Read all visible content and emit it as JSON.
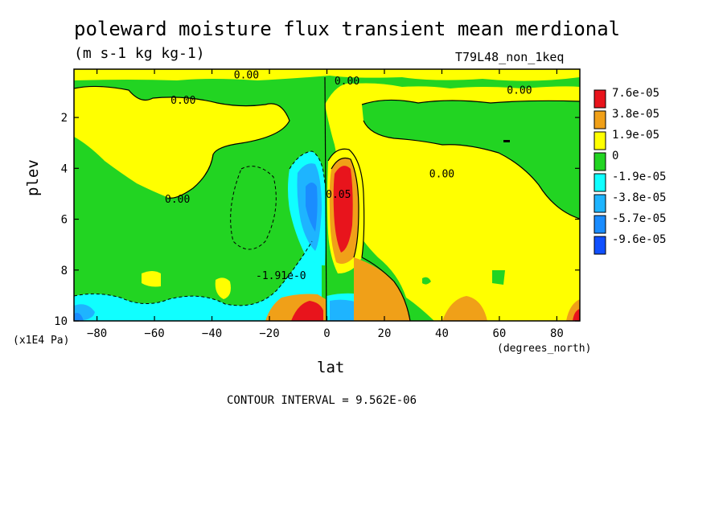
{
  "title": "poleward moisture flux transient mean merdional",
  "subtitle": "(m s-1 kg kg-1)",
  "run_label": "T79L48_non_1keq",
  "y_units": "(x1E4 Pa)",
  "x_units": "(degrees_north)",
  "contour_interval": "CONTOUR INTERVAL = 9.562E-06",
  "colors": {
    "red": "#e8141c",
    "orange": "#f0a018",
    "yellow": "#ffff00",
    "green": "#22d422",
    "cyan": "#10ffff",
    "blue1": "#1eb4ff",
    "blue2": "#1a8cff",
    "blue3": "#1050ff"
  },
  "chart_data": {
    "type": "heatmap",
    "xlabel": "lat",
    "ylabel": "plev",
    "xlim": [
      -88,
      88
    ],
    "ylim": [
      10,
      0.1
    ],
    "x_ticks": [
      -80,
      -60,
      -40,
      -20,
      0,
      20,
      40,
      60,
      80
    ],
    "y_ticks": [
      2,
      4,
      6,
      8,
      10
    ],
    "legend": {
      "placement": "right",
      "labels": [
        "7.6e-05",
        "3.8e-05",
        "1.9e-05",
        "0",
        "-1.9e-05",
        "-3.8e-05",
        "-5.7e-05",
        "-9.6e-05"
      ]
    },
    "contour_labels": [
      {
        "text": "0.00",
        "x": -28,
        "y": 0.3
      },
      {
        "text": "0.00",
        "x": 7,
        "y": 0.55
      },
      {
        "text": "0.00",
        "x": -50,
        "y": 1.3
      },
      {
        "text": "0.00",
        "x": 67,
        "y": 0.9
      },
      {
        "text": "0.00",
        "x": 40,
        "y": 4.2
      },
      {
        "text": "0.00",
        "x": -52,
        "y": 5.2
      },
      {
        "text": "-1.91e-0",
        "x": -16,
        "y": 8.2
      },
      {
        "text": "0.05",
        "x": 4,
        "y": 5.0
      }
    ]
  }
}
